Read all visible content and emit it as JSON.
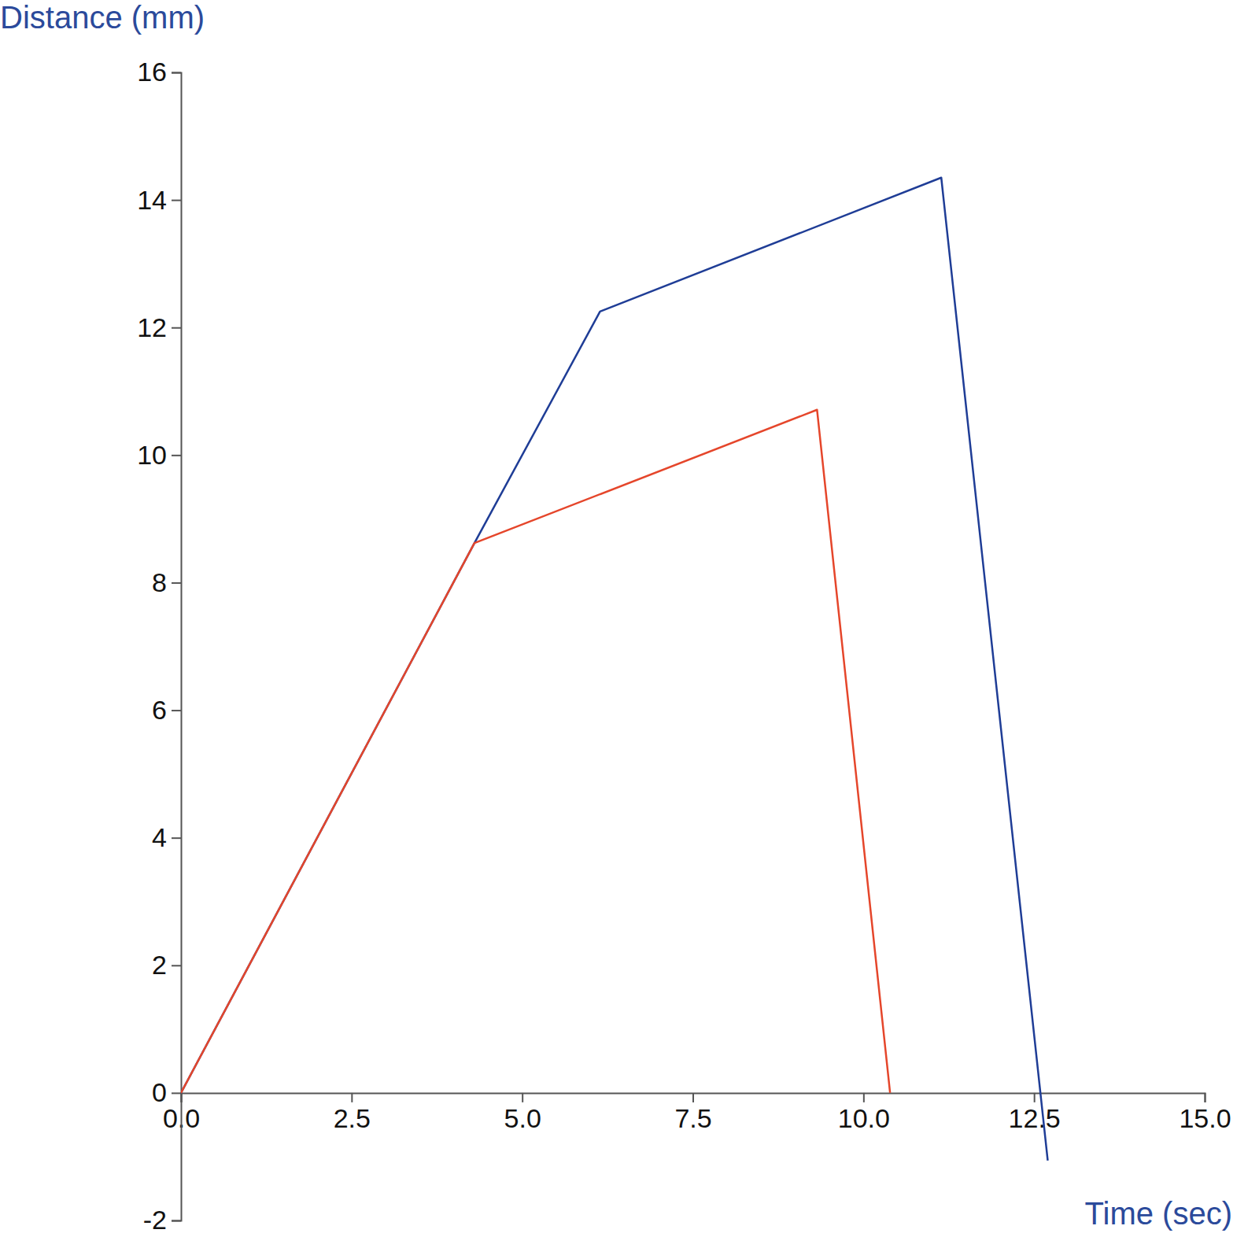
{
  "chart_data": {
    "type": "line",
    "x_label": "Time (sec)",
    "y_label": "Distance (mm)",
    "series": [
      {
        "color": "#1f3d96",
        "x": [
          0,
          4.3,
          6.14,
          11.14,
          12.7
        ],
        "values": [
          0,
          8.62,
          12.25,
          14.35,
          -1.06
        ]
      },
      {
        "color": "#e5462b",
        "x": [
          0,
          4.3,
          9.32,
          10.39
        ],
        "values": [
          0,
          8.62,
          10.71,
          0
        ]
      }
    ],
    "xlim": [
      0,
      15
    ],
    "xticks": [
      {
        "value": 0,
        "label": "0.0"
      },
      2.5,
      {
        "value": 5,
        "label": "5.0"
      },
      7.5,
      {
        "value": 10,
        "label": "10.0"
      },
      12.5,
      {
        "value": 15,
        "label": "15.0"
      }
    ],
    "ylim": [
      -2,
      16
    ],
    "yticks": [
      -2,
      0,
      2,
      4,
      6,
      8,
      10,
      12,
      14,
      16
    ],
    "grid": false
  }
}
